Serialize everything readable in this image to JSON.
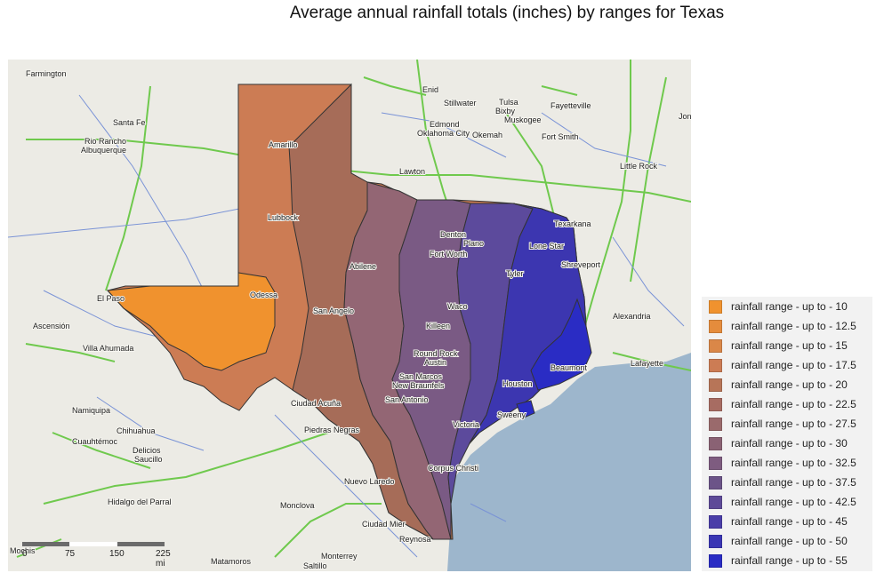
{
  "title": "Average annual rainfall totals (inches) by ranges for Texas",
  "legend": [
    {
      "label": "rainfall range - up to - 10",
      "color": "#f0922e"
    },
    {
      "label": "rainfall range - up to - 12.5",
      "color": "#e58c3c"
    },
    {
      "label": "rainfall range - up to - 15",
      "color": "#da8748"
    },
    {
      "label": "rainfall range - up to - 17.5",
      "color": "#cc7c54"
    },
    {
      "label": "rainfall range - up to - 20",
      "color": "#b77558"
    },
    {
      "label": "rainfall range - up to - 22.5",
      "color": "#a76c62"
    },
    {
      "label": "rainfall range - up to - 27.5",
      "color": "#9a6a6c"
    },
    {
      "label": "rainfall range - up to - 30",
      "color": "#8a6274"
    },
    {
      "label": "rainfall range - up to - 32.5",
      "color": "#7e5c80"
    },
    {
      "label": "rainfall range - up to - 37.5",
      "color": "#6c5488"
    },
    {
      "label": "rainfall range - up to - 42.5",
      "color": "#5e4a98"
    },
    {
      "label": "rainfall range - up to - 45",
      "color": "#4a3ea8"
    },
    {
      "label": "rainfall range - up to - 50",
      "color": "#3a36b4"
    },
    {
      "label": "rainfall range - up to - 55",
      "color": "#2a2cc4"
    }
  ],
  "places": [
    "Farmington",
    "Santa Fe",
    "Rio Rancho",
    "Albuquerque",
    "Amarillo",
    "Lubbock",
    "Odessa",
    "El Paso",
    "Ascensión",
    "Villa Ahumada",
    "San Angelo",
    "Abilene",
    "Ciudad Acuña",
    "Piedras Negras",
    "Nuevo Laredo",
    "Namiquipa",
    "Chihuahua",
    "Cuauhtémoc",
    "Delicios",
    "Saucillo",
    "Hidalgo del Parral",
    "Monclova",
    "Monterrey",
    "Saltillo",
    "Matamoros",
    "Reynosa",
    "Ciudad Mier",
    "Enid",
    "Stillwater",
    "Tulsa",
    "Bixby",
    "Muskogee",
    "Fayetteville",
    "Edmond",
    "Oklahoma City",
    "Okemah",
    "Fort Smith",
    "Lawton",
    "Little Rock",
    "Denton",
    "Plano",
    "Fort Worth",
    "Texarkana",
    "Lone Star",
    "Shreveport",
    "Tyler",
    "Waco",
    "Killeen",
    "Round Rock",
    "Austin",
    "San Marcos",
    "New Braunfels",
    "San Antonio",
    "Houston",
    "Beaumont",
    "Sweeny",
    "Victoria",
    "Corpus Christi",
    "Alexandria",
    "Lafayette",
    "Jon"
  ],
  "scale": {
    "labels": [
      "0",
      "75",
      "150",
      "225 mi"
    ]
  },
  "map_label_left": "Mochis"
}
